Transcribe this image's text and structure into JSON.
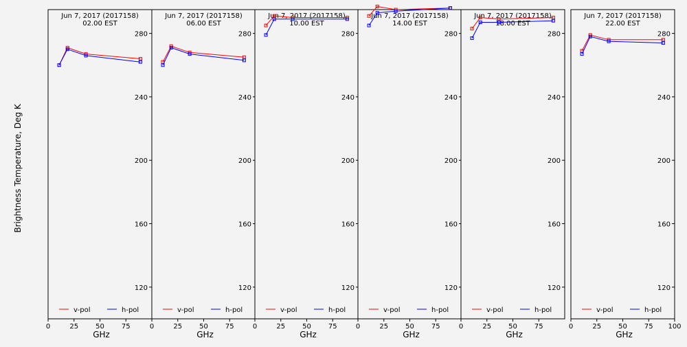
{
  "chart_data": [
    {
      "type": "line",
      "title": "Jun  7, 2017 (2017158)",
      "subtitle": "02.00 EST",
      "xlabel": "GHz",
      "ylabel": "Brightness Temperature, Deg K",
      "xlim": [
        0,
        100
      ],
      "ylim": [
        100,
        295
      ],
      "xticks": [
        0,
        25,
        50,
        75
      ],
      "yticks": [
        120,
        160,
        200,
        240,
        280
      ],
      "x": [
        10.65,
        18.7,
        36.5,
        89
      ],
      "series": [
        {
          "name": "v-pol",
          "color": "#ff0000",
          "values": [
            260,
            271,
            267,
            264
          ]
        },
        {
          "name": "h-pol",
          "color": "#0000ff",
          "values": [
            260,
            270,
            266,
            262
          ]
        }
      ],
      "legend_position": "bottom"
    },
    {
      "type": "line",
      "title": "Jun  7, 2017 (2017158)",
      "subtitle": "06.00 EST",
      "xlabel": "GHz",
      "xlim": [
        0,
        100
      ],
      "ylim": [
        100,
        295
      ],
      "xticks": [
        0,
        25,
        50,
        75
      ],
      "yticks": [
        120,
        160,
        200,
        240,
        280
      ],
      "x": [
        10.65,
        18.7,
        36.5,
        89
      ],
      "series": [
        {
          "name": "v-pol",
          "color": "#ff0000",
          "values": [
            262,
            272,
            268,
            265
          ]
        },
        {
          "name": "h-pol",
          "color": "#0000ff",
          "values": [
            260,
            271,
            267,
            263
          ]
        }
      ],
      "legend_position": "bottom"
    },
    {
      "type": "line",
      "title": "Jun  7, 2017 (2017158)",
      "subtitle": "10.00 EST",
      "xlabel": "GHz",
      "xlim": [
        0,
        100
      ],
      "ylim": [
        100,
        295
      ],
      "xticks": [
        0,
        25,
        50,
        75
      ],
      "yticks": [
        120,
        160,
        200,
        240,
        280
      ],
      "x": [
        10.65,
        18.7,
        36.5,
        89
      ],
      "series": [
        {
          "name": "v-pol",
          "color": "#ff0000",
          "values": [
            285,
            291,
            290,
            290
          ]
        },
        {
          "name": "h-pol",
          "color": "#0000ff",
          "values": [
            279,
            289,
            289,
            289
          ]
        }
      ],
      "legend_position": "bottom"
    },
    {
      "type": "line",
      "title": "Jun  7, 2017 (2017158)",
      "subtitle": "14.00 EST",
      "xlabel": "GHz",
      "xlim": [
        0,
        100
      ],
      "ylim": [
        100,
        295
      ],
      "xticks": [
        0,
        25,
        50,
        75
      ],
      "yticks": [
        120,
        160,
        200,
        240,
        280
      ],
      "x": [
        10.65,
        18.7,
        36.5,
        89
      ],
      "series": [
        {
          "name": "v-pol",
          "color": "#ff0000",
          "values": [
            291,
            297,
            295,
            296
          ]
        },
        {
          "name": "h-pol",
          "color": "#0000ff",
          "values": [
            285,
            293,
            294,
            296
          ]
        }
      ],
      "legend_position": "bottom"
    },
    {
      "type": "line",
      "title": "Jun  7, 2017 (2017158)",
      "subtitle": "18.00 EST",
      "xlabel": "GHz",
      "xlim": [
        0,
        100
      ],
      "ylim": [
        100,
        295
      ],
      "xticks": [
        0,
        25,
        50,
        75
      ],
      "yticks": [
        120,
        160,
        200,
        240,
        280
      ],
      "x": [
        10.65,
        18.7,
        36.5,
        89
      ],
      "series": [
        {
          "name": "v-pol",
          "color": "#ff0000",
          "values": [
            283,
            290,
            289,
            290
          ]
        },
        {
          "name": "h-pol",
          "color": "#0000ff",
          "values": [
            277,
            287,
            287,
            288
          ]
        }
      ],
      "legend_position": "bottom"
    },
    {
      "type": "line",
      "title": "Jun  7, 2017 (2017158)",
      "subtitle": "22.00 EST",
      "xlabel": "GHz",
      "xlim": [
        0,
        100
      ],
      "ylim": [
        100,
        295
      ],
      "xticks": [
        0,
        25,
        50,
        75,
        100
      ],
      "yticks": [
        120,
        160,
        200,
        240,
        280
      ],
      "x": [
        10.65,
        18.7,
        36.5,
        89
      ],
      "series": [
        {
          "name": "v-pol",
          "color": "#ff0000",
          "values": [
            269,
            279,
            276,
            276
          ]
        },
        {
          "name": "h-pol",
          "color": "#0000ff",
          "values": [
            267,
            278,
            275,
            274
          ]
        }
      ],
      "legend_position": "bottom"
    }
  ]
}
